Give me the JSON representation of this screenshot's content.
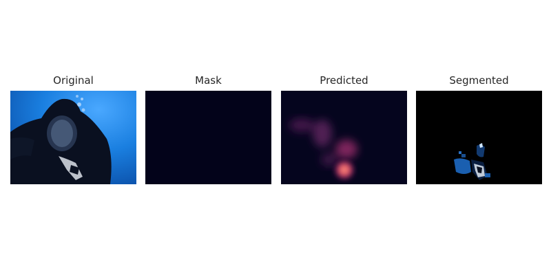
{
  "panels": [
    {
      "title": "Original"
    },
    {
      "title": "Mask"
    },
    {
      "title": "Predicted"
    },
    {
      "title": "Segmented"
    }
  ],
  "colors": {
    "background": "#ffffff",
    "title_text": "#262626",
    "water_blue": "#1a7fe0",
    "mask_fill": "#03031a",
    "heat_low": "#05051e",
    "heat_high": "#ffb0a0",
    "segment_bg": "#000000"
  }
}
